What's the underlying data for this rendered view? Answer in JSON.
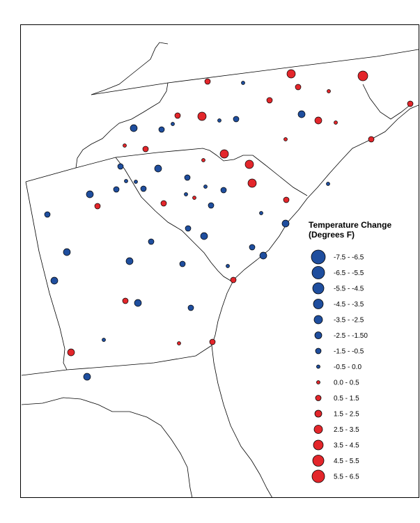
{
  "legend": {
    "title_line1": "Temperature Change",
    "title_line2": "(Degrees F)",
    "classes": [
      {
        "label": "-7.5 - -6.5",
        "color": "#1f4e9e",
        "r": 10
      },
      {
        "label": "-6.5 - -5.5",
        "color": "#1f4e9e",
        "r": 9
      },
      {
        "label": "-5.5 - -4.5",
        "color": "#1f4e9e",
        "r": 8
      },
      {
        "label": "-4.5 - -3.5",
        "color": "#1f4e9e",
        "r": 7
      },
      {
        "label": "-3.5 - -2.5",
        "color": "#1f4e9e",
        "r": 6
      },
      {
        "label": "-2.5 - -1.50",
        "color": "#1f4e9e",
        "r": 5
      },
      {
        "label": "-1.5 - -0.5",
        "color": "#1f4e9e",
        "r": 4
      },
      {
        "label": "-0.5 - 0.0",
        "color": "#1f4e9e",
        "r": 2.5
      },
      {
        "label": "0.0 - 0.5",
        "color": "#e3262b",
        "r": 2.5
      },
      {
        "label": "0.5 - 1.5",
        "color": "#e3262b",
        "r": 4
      },
      {
        "label": "1.5 - 2.5",
        "color": "#e3262b",
        "r": 5
      },
      {
        "label": "2.5 - 3.5",
        "color": "#e3262b",
        "r": 6
      },
      {
        "label": "3.5 - 4.5",
        "color": "#e3262b",
        "r": 7
      },
      {
        "label": "4.5 - 5.5",
        "color": "#e3262b",
        "r": 8
      },
      {
        "label": "5.5 - 6.5",
        "color": "#e3262b",
        "r": 9
      }
    ]
  },
  "colors": {
    "cooling": "#1f4e9e",
    "warming": "#e3262b",
    "outline": "#000000"
  }
}
